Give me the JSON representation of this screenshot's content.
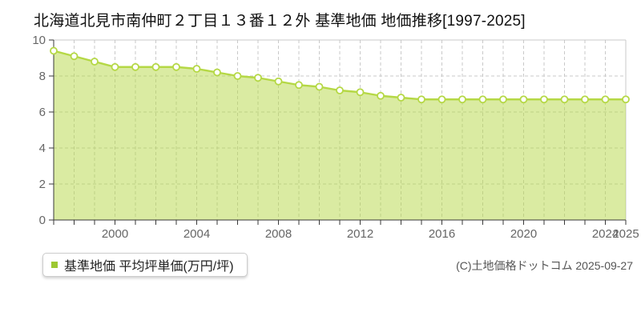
{
  "page": {
    "title": "北海道北見市南仲町２丁目１３番１２外 基準地価 地価推移[1997-2025]",
    "copyright": "(C)土地価格ドットコム 2025-09-27",
    "background": "#ffffff"
  },
  "legend": {
    "label": "基準地価 平均坪単価(万円/坪)",
    "marker_color": "#9dc832"
  },
  "chart_data": {
    "type": "area",
    "title": "北海道北見市南仲町２丁目１３番１２外 基準地価 地価推移[1997-2025]",
    "x": [
      1997,
      1998,
      1999,
      2000,
      2001,
      2002,
      2003,
      2004,
      2005,
      2006,
      2007,
      2008,
      2009,
      2010,
      2011,
      2012,
      2013,
      2014,
      2015,
      2016,
      2017,
      2018,
      2019,
      2020,
      2021,
      2022,
      2023,
      2024,
      2025
    ],
    "series": [
      {
        "name": "基準地価 平均坪単価(万円/坪)",
        "values": [
          9.4,
          9.1,
          8.8,
          8.5,
          8.5,
          8.5,
          8.5,
          8.4,
          8.2,
          8.0,
          7.9,
          7.7,
          7.5,
          7.4,
          7.2,
          7.1,
          6.9,
          6.8,
          6.7,
          6.7,
          6.7,
          6.7,
          6.7,
          6.7,
          6.7,
          6.7,
          6.7,
          6.7,
          6.7
        ]
      }
    ],
    "xlabel": "",
    "ylabel": "",
    "ylim": [
      0,
      10
    ],
    "y_ticks": [
      0,
      2,
      4,
      6,
      8,
      10
    ],
    "x_tick_years": [
      2000,
      2004,
      2008,
      2012,
      2016,
      2020,
      2024,
      2025
    ],
    "grid": true,
    "legend_position": "bottom-left",
    "colors": {
      "line": "#b5d845",
      "fill": "rgba(181,216,69,0.5)",
      "marker_fill": "#ffffff",
      "grid": "#c9c9c9",
      "axis": "#3a3a3a",
      "tick_label": "#666666"
    }
  }
}
